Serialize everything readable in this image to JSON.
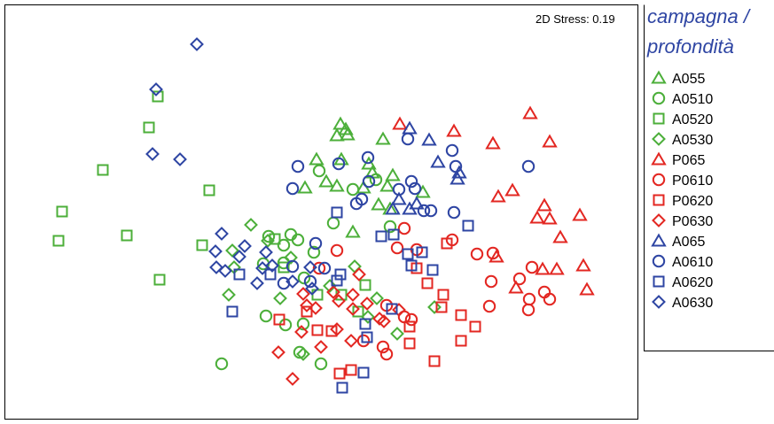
{
  "chart_data": {
    "type": "scatter",
    "annotation": "2D Stress: 0.19",
    "legend_title_lines": [
      "campagna /",
      "profondità"
    ],
    "legend_position": "right",
    "colors": {
      "green": "#4caf3a",
      "red": "#e32722",
      "blue": "#2e45a3",
      "title": "#2e45a3"
    },
    "series": [
      {
        "name": "A055",
        "shape": "triangle",
        "color": "green",
        "points": [
          [
            384,
            140
          ],
          [
            390,
            146
          ],
          [
            380,
            153
          ],
          [
            392,
            152
          ],
          [
            432,
            157
          ],
          [
            357,
            180
          ],
          [
            385,
            180
          ],
          [
            368,
            205
          ],
          [
            416,
            185
          ],
          [
            420,
            195
          ],
          [
            443,
            198
          ],
          [
            437,
            210
          ],
          [
            477,
            217
          ],
          [
            427,
            231
          ],
          [
            440,
            236
          ],
          [
            398,
            262
          ],
          [
            344,
            212
          ],
          [
            410,
            212
          ],
          [
            380,
            210
          ]
        ]
      },
      {
        "name": "A0510",
        "shape": "circle",
        "color": "green",
        "points": [
          [
            360,
            193
          ],
          [
            424,
            203
          ],
          [
            398,
            214
          ],
          [
            376,
            252
          ],
          [
            440,
            256
          ],
          [
            303,
            267
          ],
          [
            328,
            265
          ],
          [
            336,
            271
          ],
          [
            320,
            277
          ],
          [
            354,
            285
          ],
          [
            320,
            297
          ],
          [
            297,
            298
          ],
          [
            343,
            314
          ],
          [
            300,
            357
          ],
          [
            342,
            366
          ],
          [
            322,
            367
          ],
          [
            338,
            398
          ],
          [
            362,
            411
          ],
          [
            250,
            411
          ]
        ]
      },
      {
        "name": "A0520",
        "shape": "square",
        "color": "green",
        "points": [
          [
            178,
            109
          ],
          [
            168,
            144
          ],
          [
            116,
            192
          ],
          [
            236,
            215
          ],
          [
            70,
            239
          ],
          [
            66,
            272
          ],
          [
            143,
            266
          ],
          [
            228,
            277
          ],
          [
            180,
            316
          ],
          [
            310,
            270
          ],
          [
            320,
            302
          ],
          [
            412,
            322
          ],
          [
            385,
            333
          ],
          [
            358,
            333
          ],
          [
            404,
            352
          ]
        ]
      },
      {
        "name": "A0530",
        "shape": "diamond",
        "color": "green",
        "points": [
          [
            283,
            254
          ],
          [
            262,
            283
          ],
          [
            302,
            272
          ],
          [
            328,
            291
          ],
          [
            264,
            302
          ],
          [
            258,
            333
          ],
          [
            316,
            337
          ],
          [
            372,
            323
          ],
          [
            415,
            358
          ],
          [
            342,
            400
          ],
          [
            448,
            377
          ],
          [
            490,
            347
          ],
          [
            425,
            337
          ],
          [
            400,
            301
          ]
        ]
      },
      {
        "name": "P065",
        "shape": "triangle",
        "color": "red",
        "points": [
          [
            451,
            140
          ],
          [
            512,
            148
          ],
          [
            598,
            128
          ],
          [
            556,
            162
          ],
          [
            620,
            160
          ],
          [
            578,
            215
          ],
          [
            562,
            222
          ],
          [
            614,
            232
          ],
          [
            606,
            246
          ],
          [
            620,
            247
          ],
          [
            654,
            243
          ],
          [
            632,
            268
          ],
          [
            612,
            304
          ],
          [
            628,
            304
          ],
          [
            658,
            300
          ],
          [
            662,
            327
          ],
          [
            582,
            325
          ],
          [
            560,
            290
          ]
        ]
      },
      {
        "name": "P0610",
        "shape": "circle",
        "color": "red",
        "points": [
          [
            510,
            271
          ],
          [
            538,
            287
          ],
          [
            556,
            286
          ],
          [
            456,
            258
          ],
          [
            448,
            280
          ],
          [
            600,
            302
          ],
          [
            554,
            318
          ],
          [
            586,
            315
          ],
          [
            614,
            330
          ],
          [
            597,
            338
          ],
          [
            620,
            338
          ],
          [
            596,
            350
          ],
          [
            552,
            346
          ],
          [
            436,
            345
          ],
          [
            464,
            361
          ],
          [
            432,
            392
          ],
          [
            436,
            400
          ],
          [
            410,
            385
          ],
          [
            380,
            283
          ],
          [
            360,
            303
          ],
          [
            456,
            358
          ],
          [
            470,
            282
          ]
        ]
      },
      {
        "name": "P0620",
        "shape": "square",
        "color": "red",
        "points": [
          [
            504,
            275
          ],
          [
            470,
            303
          ],
          [
            482,
            320
          ],
          [
            500,
            333
          ],
          [
            498,
            347
          ],
          [
            520,
            356
          ],
          [
            536,
            369
          ],
          [
            462,
            369
          ],
          [
            520,
            385
          ],
          [
            462,
            388
          ],
          [
            490,
            408
          ],
          [
            396,
            418
          ],
          [
            383,
            422
          ],
          [
            315,
            361
          ],
          [
            358,
            373
          ],
          [
            374,
            374
          ],
          [
            346,
            352
          ]
        ]
      },
      {
        "name": "P0630",
        "shape": "diamond",
        "color": "red",
        "points": [
          [
            405,
            310
          ],
          [
            342,
            332
          ],
          [
            346,
            345
          ],
          [
            376,
            330
          ],
          [
            398,
            333
          ],
          [
            356,
            348
          ],
          [
            382,
            340
          ],
          [
            398,
            349
          ],
          [
            414,
            343
          ],
          [
            433,
            363
          ],
          [
            340,
            375
          ],
          [
            380,
            372
          ],
          [
            362,
            392
          ],
          [
            396,
            385
          ],
          [
            314,
            398
          ],
          [
            330,
            428
          ],
          [
            450,
            350
          ],
          [
            428,
            360
          ]
        ]
      },
      {
        "name": "A065",
        "shape": "triangle",
        "color": "blue",
        "points": [
          [
            462,
            145
          ],
          [
            484,
            158
          ],
          [
            494,
            183
          ],
          [
            518,
            195
          ],
          [
            516,
            202
          ],
          [
            443,
            236
          ],
          [
            462,
            236
          ],
          [
            470,
            230
          ],
          [
            450,
            225
          ]
        ]
      },
      {
        "name": "A0610",
        "shape": "circle",
        "color": "blue",
        "points": [
          [
            460,
            157
          ],
          [
            415,
            178
          ],
          [
            510,
            170
          ],
          [
            336,
            188
          ],
          [
            382,
            185
          ],
          [
            416,
            205
          ],
          [
            330,
            213
          ],
          [
            402,
            230
          ],
          [
            450,
            214
          ],
          [
            464,
            205
          ],
          [
            468,
            213
          ],
          [
            514,
            188
          ],
          [
            486,
            238
          ],
          [
            512,
            240
          ],
          [
            596,
            188
          ],
          [
            356,
            275
          ],
          [
            330,
            301
          ],
          [
            366,
            303
          ],
          [
            350,
            318
          ],
          [
            320,
            320
          ],
          [
            408,
            225
          ],
          [
            478,
            238
          ]
        ]
      },
      {
        "name": "A0620",
        "shape": "square",
        "color": "blue",
        "points": [
          [
            380,
            240
          ],
          [
            430,
            267
          ],
          [
            444,
            265
          ],
          [
            460,
            287
          ],
          [
            476,
            285
          ],
          [
            464,
            300
          ],
          [
            528,
            255
          ],
          [
            488,
            305
          ],
          [
            384,
            310
          ],
          [
            380,
            317
          ],
          [
            262,
            352
          ],
          [
            442,
            349
          ],
          [
            412,
            366
          ],
          [
            414,
            381
          ],
          [
            410,
            421
          ],
          [
            386,
            438
          ],
          [
            270,
            310
          ],
          [
            305,
            310
          ]
        ]
      },
      {
        "name": "A0630",
        "shape": "diamond",
        "color": "blue",
        "points": [
          [
            222,
            50
          ],
          [
            176,
            101
          ],
          [
            172,
            174
          ],
          [
            203,
            180
          ],
          [
            250,
            264
          ],
          [
            243,
            284
          ],
          [
            276,
            278
          ],
          [
            270,
            290
          ],
          [
            244,
            302
          ],
          [
            254,
            306
          ],
          [
            296,
            303
          ],
          [
            300,
            285
          ],
          [
            290,
            320
          ],
          [
            350,
            302
          ],
          [
            352,
            326
          ],
          [
            307,
            300
          ],
          [
            330,
            318
          ]
        ]
      }
    ]
  }
}
